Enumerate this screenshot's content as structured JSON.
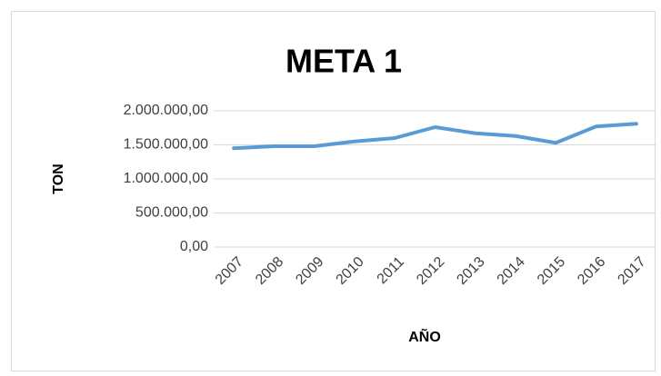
{
  "chart_data": {
    "type": "line",
    "title": "META 1",
    "x_label": "AÑO",
    "y_label": "TON",
    "categories": [
      "2007",
      "2008",
      "2009",
      "2010",
      "2011",
      "2012",
      "2013",
      "2014",
      "2015",
      "2016",
      "2017"
    ],
    "series": [
      {
        "name": "META 1",
        "color": "#5b9bd5",
        "values": [
          1450000,
          1480000,
          1480000,
          1550000,
          1600000,
          1760000,
          1670000,
          1630000,
          1530000,
          1770000,
          1810000
        ]
      }
    ],
    "ylim": [
      0,
      2000000
    ],
    "yticks": [
      {
        "value": 0,
        "label": "0,00"
      },
      {
        "value": 500000,
        "label": "500.000,00"
      },
      {
        "value": 1000000,
        "label": "1.000.000,00"
      },
      {
        "value": 1500000,
        "label": "1.500.000,00"
      },
      {
        "value": 2000000,
        "label": "2.000.000,00"
      }
    ],
    "grid": true
  }
}
